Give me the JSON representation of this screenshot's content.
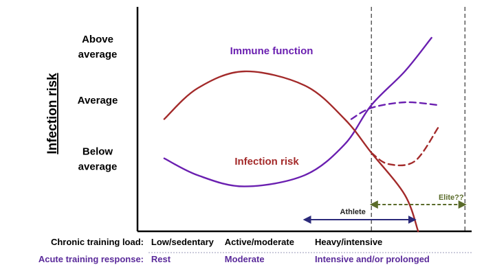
{
  "chart_data": {
    "type": "line",
    "ylabel": "Infection risk",
    "y_tick_labels": [
      {
        "lines": [
          "Above",
          "average"
        ]
      },
      {
        "lines": [
          "Average"
        ]
      },
      {
        "lines": [
          "Below",
          "average"
        ]
      }
    ],
    "series": [
      {
        "name": "Immune function",
        "color": "#6a1fb0",
        "style": "solid",
        "points": [
          [
            0.08,
            1.3
          ],
          [
            0.18,
            1.0
          ],
          [
            0.32,
            0.8
          ],
          [
            0.5,
            1.0
          ],
          [
            0.62,
            1.55
          ],
          [
            0.7,
            2.25
          ],
          [
            0.8,
            2.85
          ],
          [
            0.88,
            3.45
          ]
        ]
      },
      {
        "name": "Infection risk",
        "color": "#a32a2a",
        "style": "solid",
        "points": [
          [
            0.08,
            2.0
          ],
          [
            0.18,
            2.55
          ],
          [
            0.32,
            2.85
          ],
          [
            0.5,
            2.6
          ],
          [
            0.62,
            2.0
          ],
          [
            0.7,
            1.4
          ],
          [
            0.8,
            0.65
          ],
          [
            0.84,
            0.0
          ]
        ]
      },
      {
        "name": "",
        "color": "#6a1fb0",
        "style": "dashed",
        "points": [
          [
            0.64,
            2.0
          ],
          [
            0.7,
            2.2
          ],
          [
            0.8,
            2.3
          ],
          [
            0.9,
            2.25
          ]
        ]
      },
      {
        "name": "",
        "color": "#a32a2a",
        "style": "dashed",
        "points": [
          [
            0.7,
            1.4
          ],
          [
            0.75,
            1.2
          ],
          [
            0.83,
            1.25
          ],
          [
            0.9,
            1.85
          ]
        ]
      }
    ],
    "vertical_markers": [
      0.7,
      0.98
    ],
    "ranges": [
      {
        "label": "Athlete",
        "from": 0.5,
        "to": 0.83,
        "color": "#2b2a7a",
        "style": "solid"
      },
      {
        "label": "Elite??",
        "from": 0.7,
        "to": 0.98,
        "color": "#5a6b2a",
        "style": "dashed"
      }
    ],
    "x_axis_rows": [
      {
        "title": "Chronic training load:",
        "color": "#000000",
        "labels": [
          {
            "text": "Low/sedentary",
            "x": 0.08
          },
          {
            "text": "Active/moderate",
            "x": 0.3
          },
          {
            "text": "Heavy/intensive",
            "x": 0.57
          }
        ]
      },
      {
        "title": "Acute training response:",
        "color": "#5a2a9a",
        "labels": [
          {
            "text": "Rest",
            "x": 0.08
          },
          {
            "text": "Moderate",
            "x": 0.3
          },
          {
            "text": "Intensive and/or prolonged",
            "x": 0.57
          }
        ]
      }
    ],
    "xlim": [
      0,
      1
    ],
    "ylim": [
      0,
      4
    ]
  }
}
